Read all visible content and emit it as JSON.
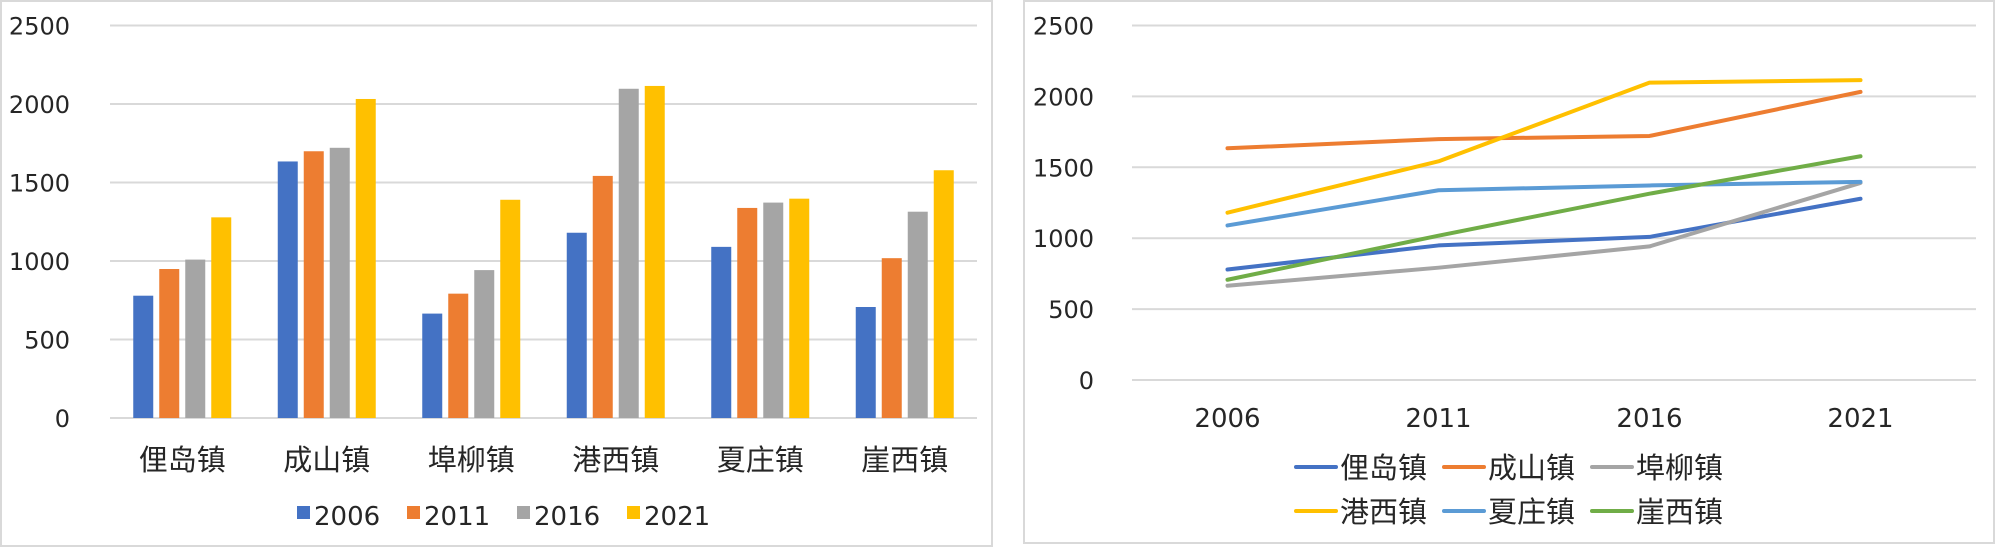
{
  "chart_data": [
    {
      "type": "bar",
      "categories": [
        "俚岛镇",
        "成山镇",
        "埠柳镇",
        "港西镇",
        "夏庄镇",
        "崖西镇"
      ],
      "series": [
        {
          "name": "2006",
          "color": "#4472C4",
          "values": [
            779,
            1634,
            665,
            1180,
            1090,
            707
          ]
        },
        {
          "name": "2011",
          "color": "#ED7D31",
          "values": [
            949,
            1699,
            792,
            1542,
            1338,
            1018
          ]
        },
        {
          "name": "2016",
          "color": "#A5A5A5",
          "values": [
            1009,
            1721,
            942,
            2097,
            1372,
            1314
          ]
        },
        {
          "name": "2021",
          "color": "#FFC000",
          "values": [
            1278,
            2032,
            1390,
            2115,
            1397,
            1578
          ]
        }
      ],
      "ylim": [
        0,
        2500
      ],
      "yticks": [
        "0",
        "500",
        "1000",
        "1500",
        "2000",
        "2500"
      ],
      "grid": true,
      "legend": "bottom"
    },
    {
      "type": "line",
      "categories": [
        "2006",
        "2011",
        "2016",
        "2021"
      ],
      "series": [
        {
          "name": "俚岛镇",
          "color": "#4472C4",
          "values": [
            779,
            949,
            1009,
            1278
          ]
        },
        {
          "name": "成山镇",
          "color": "#ED7D31",
          "values": [
            1634,
            1699,
            1721,
            2032
          ]
        },
        {
          "name": "埠柳镇",
          "color": "#A5A5A5",
          "values": [
            665,
            792,
            942,
            1390
          ]
        },
        {
          "name": "港西镇",
          "color": "#FFC000",
          "values": [
            1180,
            1542,
            2097,
            2115
          ]
        },
        {
          "name": "夏庄镇",
          "color": "#5B9BD5",
          "values": [
            1090,
            1338,
            1372,
            1397
          ]
        },
        {
          "name": "崖西镇",
          "color": "#70AD47",
          "values": [
            707,
            1018,
            1314,
            1578
          ]
        }
      ],
      "ylim": [
        0,
        2500
      ],
      "yticks": [
        "0",
        "500",
        "1000",
        "1500",
        "2000",
        "2500"
      ],
      "grid": true,
      "legend": "bottom"
    }
  ]
}
